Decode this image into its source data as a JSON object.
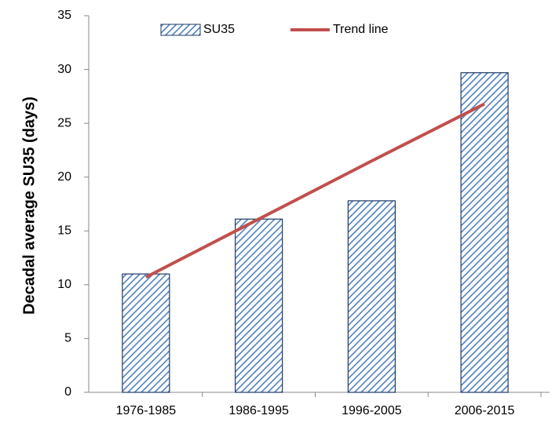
{
  "chart_data": {
    "type": "bar",
    "y_label": "Decadal average SU35 (days)",
    "categories": [
      "1976-1985",
      "1986-1995",
      "1996-2005",
      "2006-2015"
    ],
    "series": [
      {
        "name": "SU35",
        "type": "bar",
        "color": "#4f81bd",
        "edgecolor": "#1f3a66",
        "hatch": "diagonal",
        "values": [
          11.0,
          16.1,
          17.8,
          29.7
        ]
      },
      {
        "name": "Trend line",
        "type": "line",
        "color": "#c0504d",
        "values": [
          10.7,
          16.1,
          21.5,
          26.8
        ]
      }
    ],
    "ylim": [
      0,
      35
    ],
    "yticks": [
      0,
      5,
      10,
      15,
      20,
      25,
      30,
      35
    ],
    "grid": false,
    "legend": "top"
  }
}
